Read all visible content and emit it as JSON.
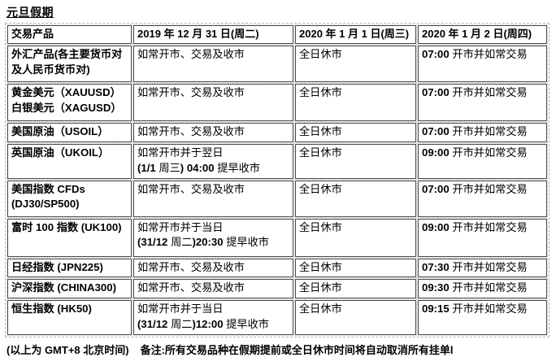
{
  "page": {
    "title": "元旦假期"
  },
  "table": {
    "headers": [
      "交易产品",
      "2019 年 12 月 31 日(周二)",
      "2020 年 1 月 1 日(周三)",
      "2020 年 1 月 2 日(周四)"
    ],
    "rows": [
      {
        "product": "外汇产品(各主要货币对\n及人民币货币对)",
        "day1": "如常开市、交易及收市",
        "day2": "全日休市",
        "day3": "07:00 开市并如常交易"
      },
      {
        "product": "黄金美元（XAUUSD）\n白银美元（XAGUSD）",
        "day1": "如常开市、交易及收市",
        "day2": "全日休市",
        "day3": "07:00 开市并如常交易"
      },
      {
        "product": "美国原油（USOIL）",
        "day1": "如常开市、交易及收市",
        "day2": "全日休市",
        "day3": "07:00 开市并如常交易"
      },
      {
        "product": "英国原油（UKOIL）",
        "day1": "如常开市并于翌日\n(1/1 周三) 04:00 提早收市",
        "day2": "全日休市",
        "day3": "09:00 开市并如常交易"
      },
      {
        "product": "美国指数 CFDs\n(DJ30/SP500)",
        "day1": "如常开市、交易及收市",
        "day2": "全日休市",
        "day3": "07:00 开市并如常交易"
      },
      {
        "product": "富时 100 指数 (UK100)",
        "day1": "如常开市并于当日\n(31/12 周二)20:30 提早收市",
        "day2": "全日休市",
        "day3": "09:00 开市并如常交易"
      },
      {
        "product": "日经指数 (JPN225)",
        "day1": "如常开市、交易及收市",
        "day2": "全日休市",
        "day3": "07:30 开市并如常交易"
      },
      {
        "product": "沪深指数 (CHINA300)",
        "day1": "如常开市、交易及收市",
        "day2": "全日休市",
        "day3": "09:30 开市并如常交易"
      },
      {
        "product": "恒生指数 (HK50)",
        "day1": "如常开市并于当日\n(31/12 周二)12:00 提早收市",
        "day2": "全日休市",
        "day3": "09:15 开市并如常交易"
      }
    ]
  },
  "footer": {
    "timezone_note": "(以上为 GMT+8 北京时间)",
    "remark": "备注:所有交易品种在假期提前或全日休市时间将自动取消所有挂单l"
  }
}
